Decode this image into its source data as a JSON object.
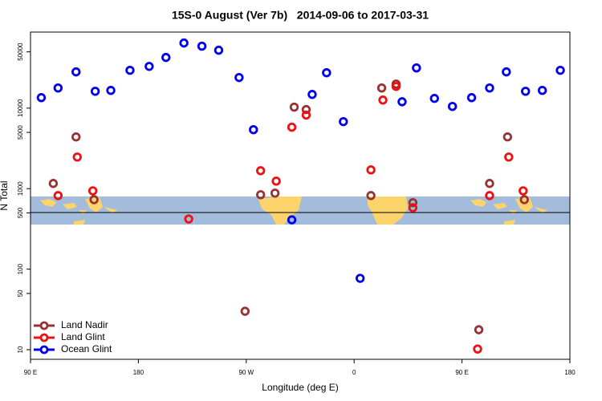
{
  "chart_data": {
    "type": "scatter",
    "title": "15S-0 August (Ver 7b)   2014-09-06 to 2017-03-31",
    "xlabel": "Longitude (deg E)",
    "ylabel": "N Total",
    "xlim": [
      90,
      540
    ],
    "xticks": [
      {
        "value": 90,
        "label": "90 E"
      },
      180,
      {
        "value": 270,
        "label": "90 W"
      },
      {
        "value": 360,
        "label": "0"
      },
      {
        "value": 450,
        "label": "90 E"
      },
      {
        "value": 540,
        "label": "180"
      }
    ],
    "ylim": [
      7.6,
      88000
    ],
    "log_y": true,
    "yticks": [
      10,
      50,
      100,
      500,
      1000,
      5000,
      10000,
      50000
    ],
    "legend": "lower left",
    "series": [
      {
        "name": "Land Nadir",
        "color": "#993333",
        "x": [
          109,
          128,
          143,
          282,
          294,
          310,
          320,
          269,
          374,
          383,
          395,
          409,
          473,
          488,
          502,
          464
        ],
        "values": [
          1160,
          4390,
          730,
          840,
          880,
          10300,
          9600,
          30,
          820,
          17800,
          19900,
          670,
          1160,
          4390,
          730,
          17.7
        ]
      },
      {
        "name": "Land Glint",
        "color": "#ee1111",
        "x": [
          113,
          129,
          142,
          222,
          282,
          295,
          308,
          320,
          374,
          384,
          395,
          409,
          473,
          489,
          501,
          463
        ],
        "values": [
          820,
          2470,
          940,
          420,
          1670,
          1240,
          5800,
          8200,
          1710,
          12600,
          18600,
          580,
          820,
          2470,
          940,
          10.2
        ]
      },
      {
        "name": "Ocean Glint",
        "color": "#0000ee",
        "x": [
          99,
          113,
          128,
          144,
          157,
          173,
          189,
          203,
          218,
          233,
          247,
          264,
          276,
          308,
          325,
          337,
          351,
          365,
          400,
          412,
          427,
          442,
          458,
          473,
          487,
          503,
          517,
          532
        ],
        "values": [
          13500,
          17800,
          28200,
          16200,
          16600,
          29500,
          33000,
          42600,
          64400,
          58800,
          52400,
          24000,
          5400,
          410,
          14800,
          27500,
          6800,
          77,
          12000,
          31600,
          13200,
          10500,
          13500,
          17800,
          28200,
          16200,
          16600,
          29500
        ]
      }
    ]
  }
}
